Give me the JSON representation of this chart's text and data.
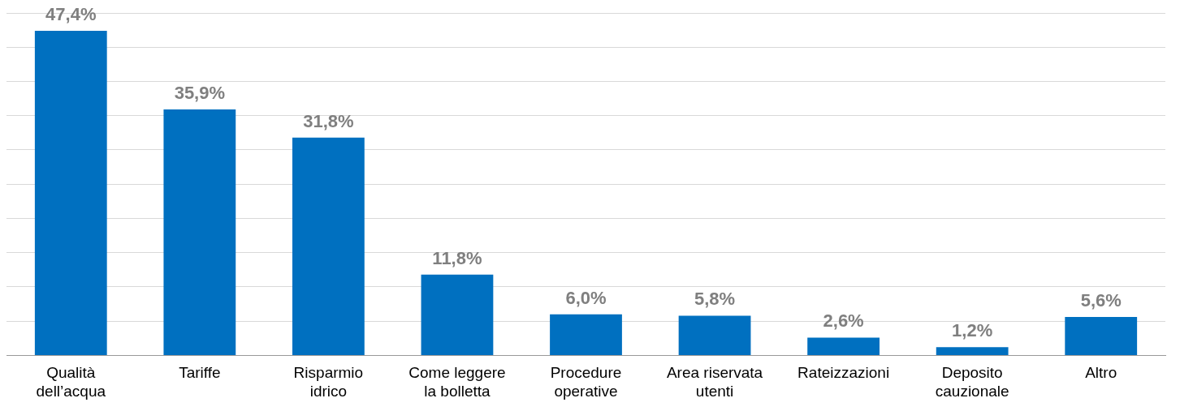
{
  "chart_data": {
    "type": "bar",
    "categories": [
      "Qualità dell’acqua",
      "Tariffe",
      "Risparmio idrico",
      "Come leggere la bolletta",
      "Procedure operative",
      "Area riservata utenti",
      "Rateizzazioni",
      "Deposito cauzionale",
      "Altro"
    ],
    "values": [
      47.4,
      35.9,
      31.8,
      11.8,
      6.0,
      5.8,
      2.6,
      1.2,
      5.6
    ],
    "value_labels": [
      "47,4%",
      "35,9%",
      "31,8%",
      "11,8%",
      "6,0%",
      "5,8%",
      "2,6%",
      "1,2%",
      "5,6%"
    ],
    "color": "#0070c0",
    "ylim": [
      0,
      50
    ],
    "grid": "y",
    "tick_labels": "x",
    "legend": false
  }
}
